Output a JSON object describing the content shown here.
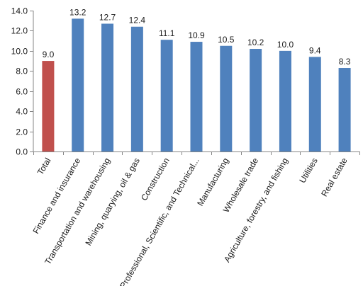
{
  "chart_data": {
    "type": "bar",
    "categories": [
      "Total",
      "Finance and insurance",
      "Transportation and warehousing",
      "Mining, quarying, oil & gas",
      "Construction",
      "Professional, Scientific, and Technical...",
      "Manufacturing",
      "Wholesale trade",
      "Agriculture, forestry, and fishing",
      "Utilities",
      "Real estate"
    ],
    "values": [
      9.0,
      13.2,
      12.7,
      12.4,
      11.1,
      10.9,
      10.5,
      10.2,
      10.0,
      9.4,
      8.3
    ],
    "data_labels": [
      "9.0",
      "13.2",
      "12.7",
      "12.4",
      "11.1",
      "10.9",
      "10.5",
      "10.2",
      "10.0",
      "9.4",
      "8.3"
    ],
    "yticks": [
      "0.0",
      "2.0",
      "4.0",
      "6.0",
      "8.0",
      "10.0",
      "12.0",
      "14.0"
    ],
    "ylim": [
      0,
      14
    ],
    "title": "",
    "xlabel": "",
    "ylabel": "",
    "grid": false,
    "legend": "none",
    "colors": {
      "highlight": "#c0504d",
      "bar": "#4f81bd",
      "axis": "#868686"
    }
  }
}
